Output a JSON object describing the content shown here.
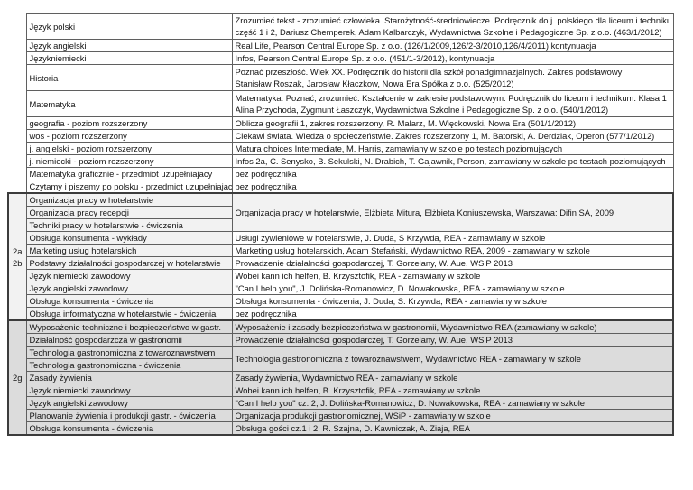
{
  "colors": {
    "grid_border": "#5f5f5f",
    "group_frame": "#3c3c3c",
    "group1_shading": "#f2f2f2",
    "group2_shading": "#dcdcdc"
  },
  "groups": {
    "g1_label_line1": "2a",
    "g1_label_line2": "2b",
    "g2_label": "2g"
  },
  "rows": {
    "r1": {
      "subject": "Język polski",
      "book_line1": "Zrozumieć tekst - zrozumieć człowieka. Starożytność-średniowiecze. Podręcznik do j. polskiego dla liceum i technikum.",
      "book_line2": "część 1 i 2, Dariusz Chemperek, Adam Kalbarczyk, Wydawnictwa Szkolne i Pedagogiczne Sp. z o.o. (463/1/2012)"
    },
    "r2": {
      "subject": "Język angielski",
      "book": "Real Life, Pearson Central Europe Sp. z o.o. (126/1/2009,126/2-3/2010,126/4/2011) kontynuacja"
    },
    "r3": {
      "subject": "Językniemiecki",
      "book": "Infos, Pearson Central Europe Sp. z o.o. (451/1-3/2012), kontynuacja"
    },
    "r4": {
      "subject": "Historia",
      "book_line1": "Poznać przeszłość. Wiek XX. Podręcznik do historii dla szkół ponadgimnazjalnych. Zakres podstawowy",
      "book_line2": "Stanisław Roszak, Jarosław Kłaczkow, Nowa Era Spółka z o.o. (525/2012)"
    },
    "r5": {
      "subject": "Matematyka",
      "book_line1": "Matematyka. Poznać, zrozumieć. Kształcenie w zakresie podstawowym. Podręcznik do liceum i technikum. Klasa 1",
      "book_line2": "Alina Przychoda, Zygmunt Łaszczyk, Wydawnictwa Szkolne i Pedagogiczne Sp. z o.o. (540/1/2012)"
    },
    "r6": {
      "subject": "geografia - poziom rozszerzony",
      "book": "Oblicza geografii 1, zakres rozszerzony, R. Malarz, M. Więckowski, Nowa Era (501/1/2012)"
    },
    "r7": {
      "subject": "wos  - poziom rozszerzony",
      "book": "Ciekawi świata. Wiedza o społeczeństwie. Zakres rozszerzony 1, M. Batorski, A. Derdziak, Operon (577/1/2012)"
    },
    "r8": {
      "subject": "j. angielski - poziom rozszerzony",
      "book": "Matura choices Intermediate, M. Harris, zamawiany w szkole po testach poziomujących"
    },
    "r9": {
      "subject": "j. niemiecki - poziom rozszerzony",
      "book": "Infos 2a, C. Senysko, B. Sekulski, N. Drabich, T. Gajawnik, Person, zamawiany w szkole po testach poziomujących"
    },
    "r10": {
      "subject": "Matematyka graficznie - przedmiot uzupełniajacy",
      "book": "bez podręcznika"
    },
    "r11": {
      "subject": "Czytamy i piszemy po polsku - przedmiot uzupełniajacy",
      "book": "bez podręcznika"
    },
    "r12": {
      "subject": "Organizacja pracy w hotelarstwie"
    },
    "r13": {
      "subject": "Organizacja pracy recepcji"
    },
    "r14": {
      "subject": "Techniki pracy w hotelarstwie - ćwiczenia"
    },
    "r12_14_book": "Organizacja pracy w hotelarstwie, Elżbieta Mitura, Elżbieta Koniuszewska, Warszawa: Difin SA, 2009",
    "r15": {
      "subject": "Obsługa konsumenta - wykłady",
      "book": "Usługi żywieniowe w hotelarstwie, J. Duda, S Krzywda, REA - zamawiany w szkole"
    },
    "r16": {
      "subject": "Marketing usług hotelarskich",
      "book": "Marketing usług hotelarskich, Adam Stefański, Wydawnictwo REA, 2009 - zamawiany w szkole"
    },
    "r17": {
      "subject": "Podstawy działalności gospodarczej w hotelarstwie",
      "book": "Prowadzenie działalności gospodarczej, T. Gorzelany, W. Aue, WSiP 2013"
    },
    "r18": {
      "subject": "Język niemiecki zawodowy",
      "book": "Wobei kann ich helfen, B. Krzysztofik, REA - zamawiany w szkole"
    },
    "r19": {
      "subject": "Język angielski zawodowy",
      "book": "\"Can I help you\", J. Dolińska-Romanowicz, D. Nowakowska, REA - zamawiany w szkole"
    },
    "r20": {
      "subject": "Obsługa konsumenta - ćwiczenia",
      "book": "Obsługa konsumenta - ćwiczenia, J. Duda, S. Krzywda, REA - zamawiany w szkole"
    },
    "r21": {
      "subject": "Obsługa informatyczna w hotelarstwie - ćwiczenia",
      "book": "bez podręcznika"
    },
    "r22": {
      "subject": "Wyposażenie techniczne i bezpieczeństwo w gastr.",
      "book": "Wyposażenie i zasady bezpieczeństwa w gastronomii, Wydawnictwo REA (zamawiany w szkole)"
    },
    "r23": {
      "subject": "Działalność gospodarzcza w gastronomii",
      "book": "Prowadzenie działalności gospodarczej, T. Gorzelany, W. Aue, WSiP 2013"
    },
    "r24": {
      "subject": "Technologia gastronomiczna z towaroznawstwem"
    },
    "r25": {
      "subject": "Technologia gastronomiczna - ćwiczenia"
    },
    "r24_25_book": "Technologia gastronomiczna z towaroznawstwem, Wydawnictwo REA - zamawiany w szkole",
    "r26": {
      "subject": "Zasady żywienia",
      "book": "Zasady żywienia, Wydawnictwo REA - zamawiany w szkole"
    },
    "r27": {
      "subject": "Język niemiecki zawodowy",
      "book": "Wobei kann ich helfen, B. Krzysztofik, REA - zamawiany w szkole"
    },
    "r28": {
      "subject": "Język angielski zawodowy",
      "book": "\"Can I help you\" cz. 2, J. Dolińska-Romanowicz, D. Nowakowska, REA - zamawiany w szkole"
    },
    "r29": {
      "subject": "Planowanie żywienia i produkcji gastr. - ćwiczenia",
      "book": "Organizacja produkcji gastronomicznej, WSiP - zamawiany w szkole"
    },
    "r30": {
      "subject": "Obsługa konsumenta - ćwiczenia",
      "book": "Obsługa gości cz.1 i 2, R. Szajna, D. Kawniczak, A. Ziaja, REA"
    }
  }
}
